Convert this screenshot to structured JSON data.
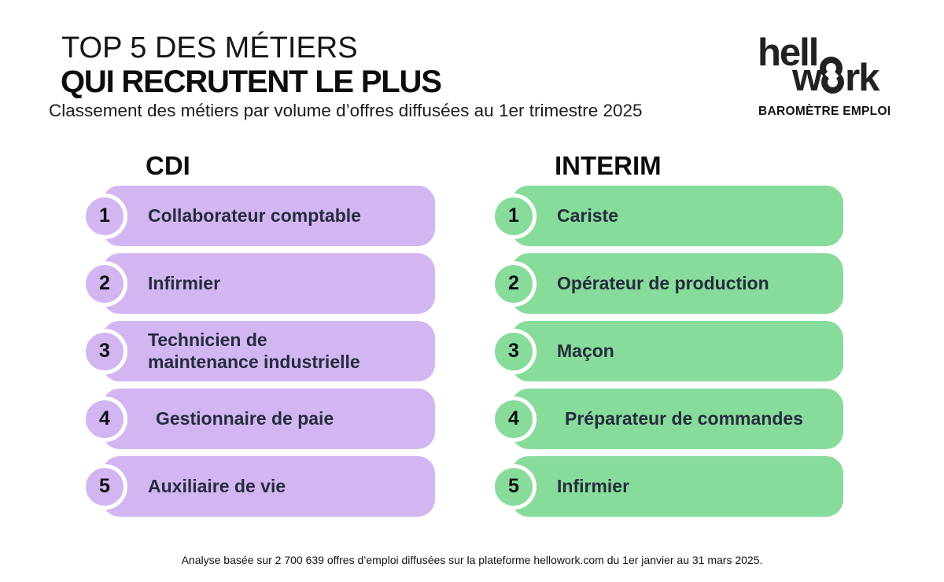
{
  "header": {
    "title_line1": "TOP 5 DES MÉTIERS",
    "title_line2": "QUI RECRUTENT LE PLUS",
    "subtitle": "Classement des métiers par volume d’offres diffusées au 1er trimestre 2025",
    "logo": {
      "line1_text": "hell",
      "line2_pre": "w",
      "line2_post": "rk",
      "tagline": "BAROMÈTRE EMPLOI"
    }
  },
  "colors": {
    "cdi_purple": "#d2b6f2",
    "interim_green": "#87dc9b",
    "label_navy": "#262c3e",
    "background": "#ffffff"
  },
  "columns": [
    {
      "id": "cdi",
      "title": "CDI",
      "color": "#d2b6f2",
      "items": [
        {
          "rank": "1",
          "label": "Collaborateur comptable"
        },
        {
          "rank": "2",
          "label": "Infirmier"
        },
        {
          "rank": "3",
          "label": "Technicien de\nmaintenance industrielle"
        },
        {
          "rank": "4",
          "label": "Gestionnaire de paie"
        },
        {
          "rank": "5",
          "label": "Auxiliaire de vie"
        }
      ]
    },
    {
      "id": "interim",
      "title": "INTERIM",
      "color": "#87dc9b",
      "items": [
        {
          "rank": "1",
          "label": "Cariste"
        },
        {
          "rank": "2",
          "label": "Opérateur de production"
        },
        {
          "rank": "3",
          "label": "Maçon"
        },
        {
          "rank": "4",
          "label": "Préparateur de commandes"
        },
        {
          "rank": "5",
          "label": "Infirmier"
        }
      ]
    }
  ],
  "footer": {
    "note": "Analyse basée sur 2 700 639 offres d’emploi diffusées sur la plateforme hellowork.com du 1er janvier au 31 mars 2025."
  },
  "chart_data": {
    "type": "table",
    "title": "TOP 5 DES MÉTIERS QUI RECRUTENT LE PLUS",
    "subtitle": "Classement des métiers par volume d’offres diffusées au 1er trimestre 2025",
    "categories": [
      "1",
      "2",
      "3",
      "4",
      "5"
    ],
    "series": [
      {
        "name": "CDI",
        "values": [
          "Collaborateur comptable",
          "Infirmier",
          "Technicien de maintenance industrielle",
          "Gestionnaire de paie",
          "Auxiliaire de vie"
        ]
      },
      {
        "name": "INTERIM",
        "values": [
          "Cariste",
          "Opérateur de production",
          "Maçon",
          "Préparateur de commandes",
          "Infirmier"
        ]
      }
    ],
    "source_note": "Analyse basée sur 2 700 639 offres d’emploi diffusées sur la plateforme hellowork.com du 1er janvier au 31 mars 2025."
  }
}
